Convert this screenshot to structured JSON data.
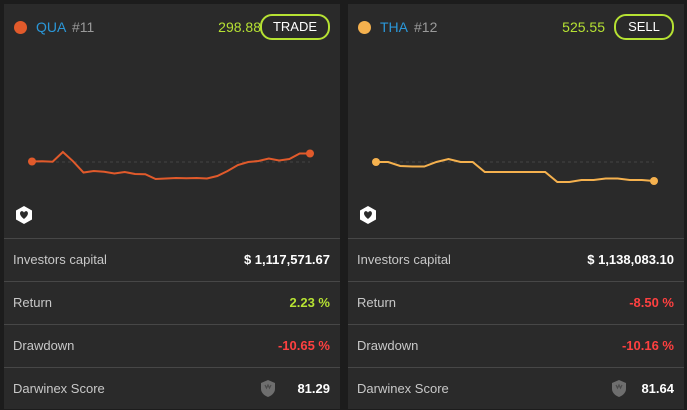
{
  "cards": [
    {
      "ticker": "QUA",
      "rank": "#11",
      "price": "298.88",
      "action": "TRADE",
      "color": "#e15a2b",
      "series": [
        0.5,
        0.8,
        0.3,
        10.0,
        0.6,
        -10.5,
        -9.0,
        -9.8,
        -11.5,
        -10.0,
        -12.0,
        -12.2,
        -17.0,
        -16.5,
        -16.0,
        -16.2,
        -16.0,
        -16.5,
        -14.0,
        -9.0,
        -3.0,
        0.0,
        1.0,
        3.5,
        1.5,
        3.0,
        8.5,
        8.5
      ],
      "stats": {
        "investors_capital_label": "Investors capital",
        "investors_capital": "$ 1,117,571.67",
        "return_label": "Return",
        "return": "2.23 %",
        "drawdown_label": "Drawdown",
        "drawdown": "-10.65 %",
        "score_label": "Darwinex Score",
        "score": "81.29"
      }
    },
    {
      "ticker": "THA",
      "rank": "#12",
      "price": "525.55",
      "action": "SELL",
      "color": "#f5b14e",
      "series": [
        0.0,
        0.0,
        -4.0,
        -4.5,
        -4.5,
        0.0,
        3.0,
        0.0,
        0.0,
        -10.0,
        -10.0,
        -10.0,
        -10.0,
        -10.0,
        -10.0,
        -20.0,
        -20.0,
        -18.0,
        -18.0,
        -16.5,
        -16.5,
        -18.0,
        -18.0,
        -19.0
      ],
      "stats": {
        "investors_capital_label": "Investors capital",
        "investors_capital": "$ 1,138,083.10",
        "return_label": "Return",
        "return": "-8.50 %",
        "drawdown_label": "Drawdown",
        "drawdown": "-10.16 %",
        "score_label": "Darwinex Score",
        "score": "81.64"
      }
    }
  ],
  "icons": {
    "badge": "hexagon-heart-icon",
    "score": "shield-icon"
  }
}
